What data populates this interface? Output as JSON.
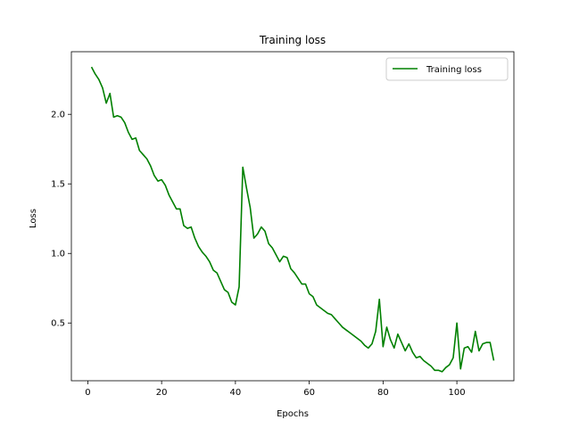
{
  "chart_data": {
    "type": "line",
    "title": "Training loss",
    "xlabel": "Epochs",
    "ylabel": "Loss",
    "xlim": [
      -4.45,
      115.45
    ],
    "ylim": [
      0.085,
      2.45
    ],
    "x_ticks": [
      0,
      20,
      40,
      60,
      80,
      100
    ],
    "y_ticks": [
      0.5,
      1.0,
      1.5,
      2.0
    ],
    "x_tick_labels": [
      "0",
      "20",
      "40",
      "60",
      "80",
      "100"
    ],
    "y_tick_labels": [
      "0.5",
      "1.0",
      "1.5",
      "2.0"
    ],
    "grid": false,
    "legend_position": "top-right",
    "series": [
      {
        "name": "Training loss",
        "color": "#008000",
        "x": [
          1,
          2,
          3,
          4,
          5,
          6,
          7,
          8,
          9,
          10,
          11,
          12,
          13,
          14,
          15,
          16,
          17,
          18,
          19,
          20,
          21,
          22,
          23,
          24,
          25,
          26,
          27,
          28,
          29,
          30,
          31,
          32,
          33,
          34,
          35,
          36,
          37,
          38,
          39,
          40,
          41,
          42,
          43,
          44,
          45,
          46,
          47,
          48,
          49,
          50,
          51,
          52,
          53,
          54,
          55,
          56,
          57,
          58,
          59,
          60,
          61,
          62,
          63,
          64,
          65,
          66,
          67,
          68,
          69,
          70,
          71,
          72,
          73,
          74,
          75,
          76,
          77,
          78,
          79,
          80,
          81,
          82,
          83,
          84,
          85,
          86,
          87,
          88,
          89,
          90,
          91,
          92,
          93,
          94,
          95,
          96,
          97,
          98,
          99,
          100,
          101,
          102,
          103,
          104,
          105,
          106,
          107,
          108,
          109,
          110
        ],
        "values": [
          2.34,
          2.29,
          2.25,
          2.19,
          2.08,
          2.15,
          1.98,
          1.99,
          1.98,
          1.94,
          1.87,
          1.82,
          1.83,
          1.74,
          1.71,
          1.68,
          1.63,
          1.56,
          1.52,
          1.53,
          1.49,
          1.42,
          1.37,
          1.32,
          1.32,
          1.2,
          1.18,
          1.19,
          1.11,
          1.05,
          1.01,
          0.98,
          0.94,
          0.88,
          0.86,
          0.8,
          0.74,
          0.72,
          0.65,
          0.63,
          0.76,
          1.62,
          1.47,
          1.33,
          1.11,
          1.14,
          1.19,
          1.16,
          1.07,
          1.04,
          0.99,
          0.94,
          0.98,
          0.97,
          0.89,
          0.86,
          0.82,
          0.78,
          0.78,
          0.71,
          0.69,
          0.63,
          0.61,
          0.59,
          0.57,
          0.56,
          0.53,
          0.5,
          0.47,
          0.45,
          0.43,
          0.41,
          0.39,
          0.37,
          0.34,
          0.32,
          0.35,
          0.44,
          0.67,
          0.33,
          0.47,
          0.38,
          0.32,
          0.42,
          0.36,
          0.3,
          0.35,
          0.29,
          0.25,
          0.26,
          0.23,
          0.21,
          0.19,
          0.16,
          0.16,
          0.15,
          0.18,
          0.2,
          0.25,
          0.5,
          0.17,
          0.32,
          0.33,
          0.29,
          0.44,
          0.3,
          0.35,
          0.36,
          0.36,
          0.23
        ]
      }
    ]
  }
}
